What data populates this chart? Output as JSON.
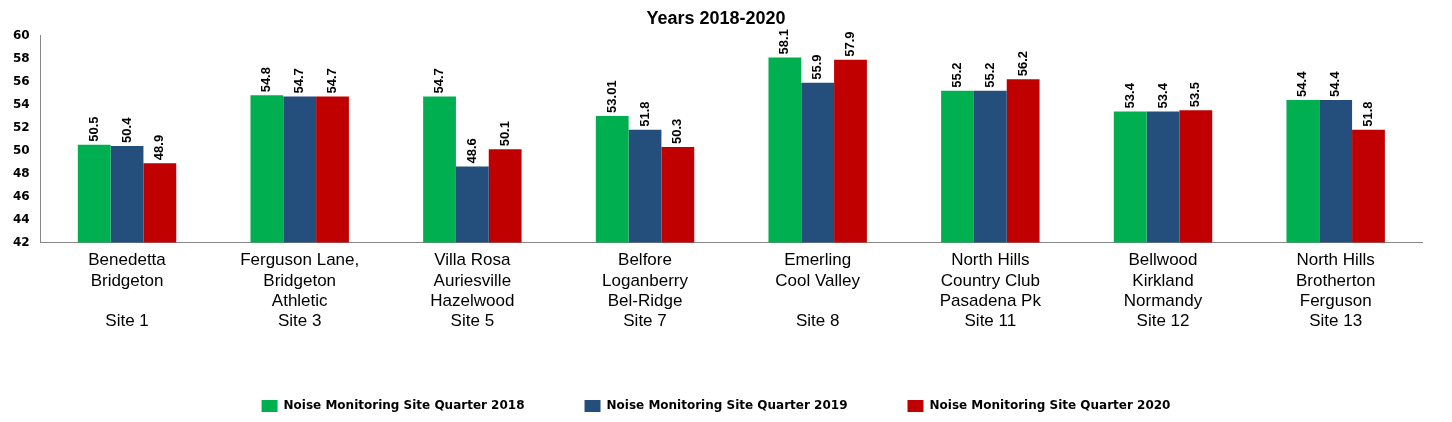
{
  "chart_data": {
    "type": "bar",
    "title": "Years 2018-2020",
    "categories": [
      "Benedetta\nBridgeton\n\nSite 1",
      "Ferguson Lane,\nBridgeton\nAthletic\nSite 3",
      "Villa Rosa\nAuriesville\nHazelwood\nSite 5",
      "Belfore\nLoganberry\nBel-Ridge\nSite 7",
      "Emerling\nCool Valley\n\nSite 8",
      "North Hills\nCountry Club\nPasadena Pk\nSite 11",
      "Bellwood\nKirkland\nNormandy\nSite 12",
      "North Hills\nBrotherton\nFerguson\nSite 13"
    ],
    "series": [
      {
        "name": "Noise Monitoring Site Quarter 2018",
        "color": "#00b050",
        "values": [
          50.5,
          54.8,
          54.7,
          53.01,
          58.1,
          55.2,
          53.4,
          54.4
        ]
      },
      {
        "name": "Noise Monitoring Site Quarter 2019",
        "color": "#244f7d",
        "values": [
          50.4,
          54.7,
          48.6,
          51.8,
          55.9,
          55.2,
          53.4,
          54.4
        ]
      },
      {
        "name": "Noise Monitoring Site Quarter 2020",
        "color": "#c00000",
        "values": [
          48.9,
          54.7,
          50.1,
          50.3,
          57.9,
          56.2,
          53.5,
          51.8
        ]
      }
    ],
    "ylim": [
      42,
      60
    ],
    "yticks": [
      42,
      44,
      46,
      48,
      50,
      52,
      54,
      56,
      58,
      60
    ],
    "grid": false,
    "legend": "bottom",
    "data_labels": true
  }
}
